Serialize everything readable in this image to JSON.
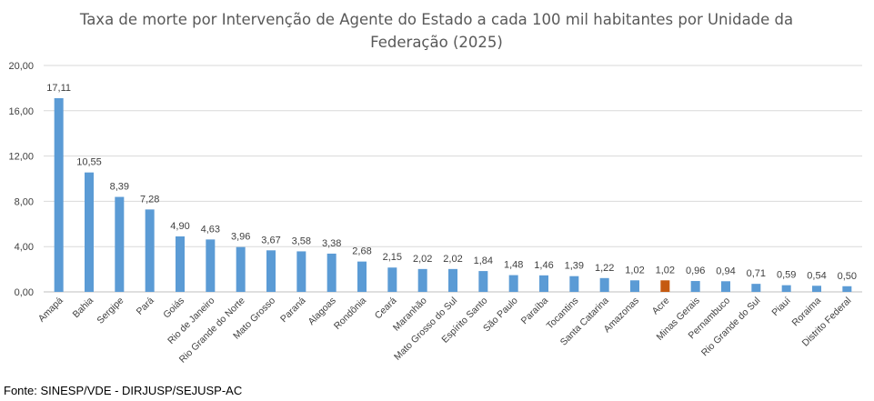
{
  "chart_data": {
    "type": "bar",
    "title": "Taxa de morte por Intervenção de Agente do Estado a cada 100 mil habitantes por Unidade da Federação (2025)",
    "title_lines": [
      "Taxa de morte por Intervenção de Agente do Estado a cada 100 mil habitantes por Unidade da",
      "Federação (2025)"
    ],
    "xlabel": "",
    "ylabel": "",
    "ylim": [
      0,
      20
    ],
    "yticks": [
      "0,00",
      "4,00",
      "8,00",
      "12,00",
      "16,00",
      "20,00"
    ],
    "grid": true,
    "legend": "none",
    "categories": [
      "Amapá",
      "Bahia",
      "Sergipe",
      "Pará",
      "Goiás",
      "Rio de Janeiro",
      "Rio Grande do Norte",
      "Mato Grosso",
      "Paraná",
      "Alagoas",
      "Rondônia",
      "Ceará",
      "Maranhão",
      "Mato Grosso do Sul",
      "Espírito Santo",
      "São Paulo",
      "Paraíba",
      "Tocantins",
      "Santa Catarina",
      "Amazonas",
      "Acre",
      "Minas Gerais",
      "Pernambuco",
      "Rio Grande do Sul",
      "Piauí",
      "Roraima",
      "Distrito Federal"
    ],
    "values": [
      17.11,
      10.55,
      8.39,
      7.28,
      4.9,
      4.63,
      3.96,
      3.67,
      3.58,
      3.38,
      2.68,
      2.15,
      2.02,
      2.02,
      1.84,
      1.48,
      1.46,
      1.39,
      1.22,
      1.02,
      1.02,
      0.96,
      0.94,
      0.71,
      0.59,
      0.54,
      0.5
    ],
    "labels": [
      "17,11",
      "10,55",
      "8,39",
      "7,28",
      "4,90",
      "4,63",
      "3,96",
      "3,67",
      "3,58",
      "3,38",
      "2,68",
      "2,15",
      "2,02",
      "2,02",
      "1,84",
      "1,48",
      "1,46",
      "1,39",
      "1,22",
      "1,02",
      "1,02",
      "0,96",
      "0,94",
      "0,71",
      "0,59",
      "0,54",
      "0,50"
    ],
    "highlight_category": "Acre",
    "colors": {
      "bar": "#5B9BD5",
      "highlight": "#C55A11",
      "grid": "#D9D9D9",
      "axis": "#BFBFBF",
      "title": "#595959",
      "text": "#404040"
    }
  },
  "footer": {
    "source": "Fonte: SINESP/VDE - DIRJUSP/SEJUSP-AC"
  }
}
